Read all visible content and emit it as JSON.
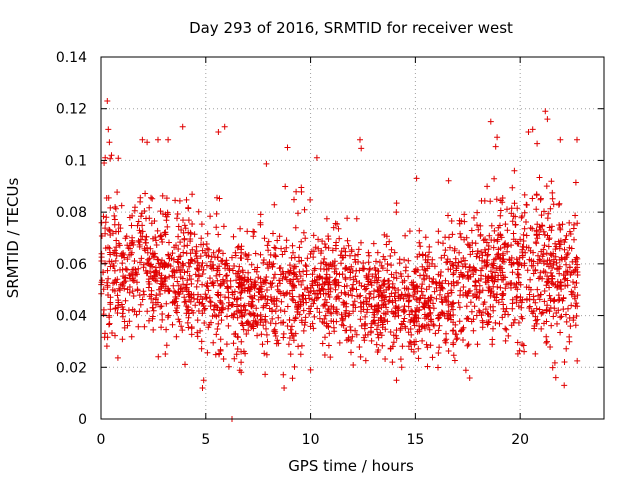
{
  "chart_data": {
    "type": "scatter",
    "title": "Day 293 of 2016, SRMTID for receiver west",
    "xlabel": "GPS time / hours",
    "ylabel": "SRMTID / TECUs",
    "xlim": [
      0,
      24
    ],
    "ylim": [
      0,
      0.14
    ],
    "x_ticks": [
      0,
      5,
      10,
      15,
      20
    ],
    "x_tick_labels": [
      "0",
      "5",
      "10",
      "15",
      "20"
    ],
    "y_ticks": [
      0,
      0.02,
      0.04,
      0.06,
      0.08,
      0.1,
      0.12,
      0.14
    ],
    "y_tick_labels": [
      "0",
      "0.02",
      "0.04",
      "0.06",
      "0.08",
      "0.1",
      "0.12",
      "0.14"
    ],
    "grid": true,
    "legend": "none",
    "marker": "plus",
    "color": "#e00000",
    "series": [
      {
        "name": "SRMTID",
        "x_range": [
          0,
          22.75
        ],
        "n_points": 2500,
        "profile": [
          {
            "t": 0.0,
            "mean": 0.058,
            "spread": 0.014
          },
          {
            "t": 0.5,
            "mean": 0.062,
            "spread": 0.016
          },
          {
            "t": 1.0,
            "mean": 0.055,
            "spread": 0.013
          },
          {
            "t": 2.0,
            "mean": 0.06,
            "spread": 0.014
          },
          {
            "t": 3.0,
            "mean": 0.057,
            "spread": 0.013
          },
          {
            "t": 4.0,
            "mean": 0.058,
            "spread": 0.013
          },
          {
            "t": 5.0,
            "mean": 0.052,
            "spread": 0.012
          },
          {
            "t": 6.0,
            "mean": 0.05,
            "spread": 0.012
          },
          {
            "t": 7.0,
            "mean": 0.046,
            "spread": 0.011
          },
          {
            "t": 8.0,
            "mean": 0.048,
            "spread": 0.011
          },
          {
            "t": 9.0,
            "mean": 0.05,
            "spread": 0.012
          },
          {
            "t": 10.0,
            "mean": 0.049,
            "spread": 0.011
          },
          {
            "t": 11.0,
            "mean": 0.05,
            "spread": 0.011
          },
          {
            "t": 12.0,
            "mean": 0.048,
            "spread": 0.011
          },
          {
            "t": 13.0,
            "mean": 0.047,
            "spread": 0.011
          },
          {
            "t": 14.0,
            "mean": 0.046,
            "spread": 0.011
          },
          {
            "t": 15.0,
            "mean": 0.045,
            "spread": 0.011
          },
          {
            "t": 16.0,
            "mean": 0.047,
            "spread": 0.011
          },
          {
            "t": 17.0,
            "mean": 0.05,
            "spread": 0.012
          },
          {
            "t": 18.0,
            "mean": 0.054,
            "spread": 0.013
          },
          {
            "t": 19.0,
            "mean": 0.055,
            "spread": 0.013
          },
          {
            "t": 20.0,
            "mean": 0.056,
            "spread": 0.014
          },
          {
            "t": 21.0,
            "mean": 0.06,
            "spread": 0.016
          },
          {
            "t": 22.0,
            "mean": 0.056,
            "spread": 0.014
          },
          {
            "t": 22.75,
            "mean": 0.055,
            "spread": 0.013
          }
        ],
        "notable_points": [
          {
            "x": 0.3,
            "y": 0.123
          },
          {
            "x": 0.35,
            "y": 0.112
          },
          {
            "x": 0.4,
            "y": 0.107
          },
          {
            "x": 0.2,
            "y": 0.101
          },
          {
            "x": 0.5,
            "y": 0.102
          },
          {
            "x": 2.2,
            "y": 0.107
          },
          {
            "x": 3.9,
            "y": 0.113
          },
          {
            "x": 5.6,
            "y": 0.111
          },
          {
            "x": 5.9,
            "y": 0.113
          },
          {
            "x": 6.25,
            "y": 0.0
          },
          {
            "x": 8.9,
            "y": 0.105
          },
          {
            "x": 10.3,
            "y": 0.101
          },
          {
            "x": 18.6,
            "y": 0.115
          },
          {
            "x": 18.9,
            "y": 0.109
          },
          {
            "x": 20.4,
            "y": 0.111
          },
          {
            "x": 20.6,
            "y": 0.112
          },
          {
            "x": 21.2,
            "y": 0.119
          },
          {
            "x": 21.3,
            "y": 0.116
          },
          {
            "x": 21.7,
            "y": 0.016
          },
          {
            "x": 22.1,
            "y": 0.013
          },
          {
            "x": 4.9,
            "y": 0.015
          },
          {
            "x": 14.1,
            "y": 0.015
          }
        ]
      }
    ]
  }
}
